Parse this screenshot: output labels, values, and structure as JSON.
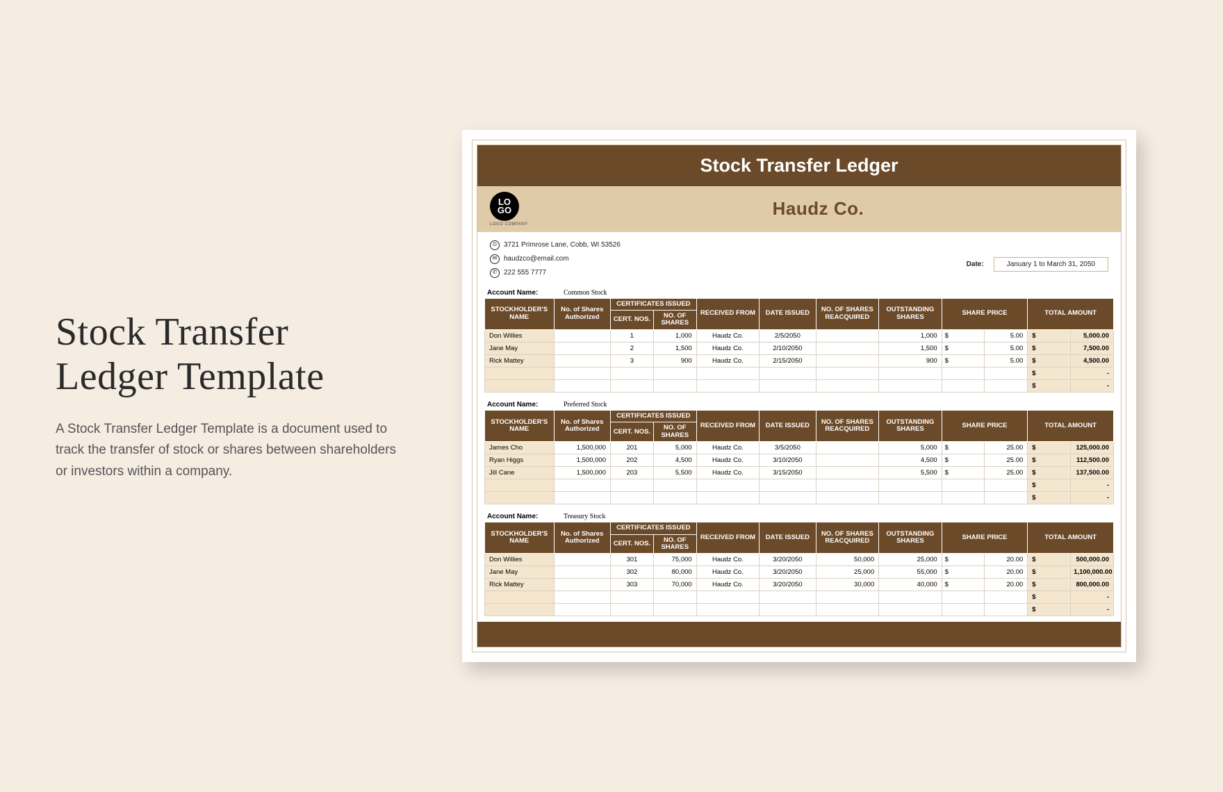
{
  "page": {
    "bg": "#f5ece2",
    "left_title": "Stock Transfer Ledger Template",
    "left_desc": "A Stock Transfer Ledger Template is a document used to track the transfer of stock or shares between shareholders or investors within a company."
  },
  "doc": {
    "title": "Stock Transfer Ledger",
    "logo_text": "LO\nGO",
    "logo_sub": "LOGO COMPANY",
    "company": "Haudz Co.",
    "address": "3721 Primrose Lane, Cobb, WI 53526",
    "email": "haudzco@email.com",
    "phone": "222 555 7777",
    "date_label": "Date:",
    "date_value": "January 1 to March 31, 2050",
    "header_brown": "#6b4a29",
    "header_tan": "#e0cba9",
    "cell_tan": "#f4e6ce",
    "acct_label": "Account Name:",
    "columns": {
      "name": "STOCKHOLDER'S NAME",
      "auth": "No. of Shares Authorized",
      "cert_group": "CERTIFICATES ISSUED",
      "cert_nos": "CERT. NOS.",
      "no_shares": "NO. OF SHARES",
      "recv": "RECEIVED FROM",
      "issued": "DATE ISSUED",
      "reacq": "NO. OF SHARES REACQUIRED",
      "outstanding": "OUTSTANDING SHARES",
      "price": "SHARE PRICE",
      "total": "TOTAL AMOUNT"
    },
    "sections": [
      {
        "account": "Common Stock",
        "rows": [
          {
            "name": "Don Willies",
            "auth": "",
            "cert": "1",
            "nsh": "1,000",
            "recv": "Haudz Co.",
            "date": "2/5/2050",
            "reacq": "",
            "out": "1,000",
            "sp": "5.00",
            "tot": "5,000.00"
          },
          {
            "name": "Jane May",
            "auth": "",
            "cert": "2",
            "nsh": "1,500",
            "recv": "Haudz Co.",
            "date": "2/10/2050",
            "reacq": "",
            "out": "1,500",
            "sp": "5.00",
            "tot": "7,500.00"
          },
          {
            "name": "Rick Mattey",
            "auth": "",
            "cert": "3",
            "nsh": "900",
            "recv": "Haudz Co.",
            "date": "2/15/2050",
            "reacq": "",
            "out": "900",
            "sp": "5.00",
            "tot": "4,500.00"
          },
          {
            "name": "",
            "auth": "",
            "cert": "",
            "nsh": "",
            "recv": "",
            "date": "",
            "reacq": "",
            "out": "",
            "sp": "",
            "tot": "-"
          },
          {
            "name": "",
            "auth": "",
            "cert": "",
            "nsh": "",
            "recv": "",
            "date": "",
            "reacq": "",
            "out": "",
            "sp": "",
            "tot": "-"
          }
        ]
      },
      {
        "account": "Preferred Stock",
        "rows": [
          {
            "name": "James Cho",
            "auth": "1,500,000",
            "cert": "201",
            "nsh": "5,000",
            "recv": "Haudz Co.",
            "date": "3/5/2050",
            "reacq": "",
            "out": "5,000",
            "sp": "25.00",
            "tot": "125,000.00"
          },
          {
            "name": "Ryan Higgs",
            "auth": "1,500,000",
            "cert": "202",
            "nsh": "4,500",
            "recv": "Haudz Co.",
            "date": "3/10/2050",
            "reacq": "",
            "out": "4,500",
            "sp": "25.00",
            "tot": "112,500.00"
          },
          {
            "name": "Jill Cane",
            "auth": "1,500,000",
            "cert": "203",
            "nsh": "5,500",
            "recv": "Haudz Co.",
            "date": "3/15/2050",
            "reacq": "",
            "out": "5,500",
            "sp": "25.00",
            "tot": "137,500.00"
          },
          {
            "name": "",
            "auth": "",
            "cert": "",
            "nsh": "",
            "recv": "",
            "date": "",
            "reacq": "",
            "out": "",
            "sp": "",
            "tot": "-"
          },
          {
            "name": "",
            "auth": "",
            "cert": "",
            "nsh": "",
            "recv": "",
            "date": "",
            "reacq": "",
            "out": "",
            "sp": "",
            "tot": "-"
          }
        ]
      },
      {
        "account": "Treasury Stock",
        "rows": [
          {
            "name": "Don Willies",
            "auth": "",
            "cert": "301",
            "nsh": "75,000",
            "recv": "Haudz Co.",
            "date": "3/20/2050",
            "reacq": "50,000",
            "out": "25,000",
            "sp": "20.00",
            "tot": "500,000.00"
          },
          {
            "name": "Jane May",
            "auth": "",
            "cert": "302",
            "nsh": "80,000",
            "recv": "Haudz Co.",
            "date": "3/20/2050",
            "reacq": "25,000",
            "out": "55,000",
            "sp": "20.00",
            "tot": "1,100,000.00"
          },
          {
            "name": "Rick Mattey",
            "auth": "",
            "cert": "303",
            "nsh": "70,000",
            "recv": "Haudz Co.",
            "date": "3/20/2050",
            "reacq": "30,000",
            "out": "40,000",
            "sp": "20.00",
            "tot": "800,000.00"
          },
          {
            "name": "",
            "auth": "",
            "cert": "",
            "nsh": "",
            "recv": "",
            "date": "",
            "reacq": "",
            "out": "",
            "sp": "",
            "tot": "-"
          },
          {
            "name": "",
            "auth": "",
            "cert": "",
            "nsh": "",
            "recv": "",
            "date": "",
            "reacq": "",
            "out": "",
            "sp": "",
            "tot": "-"
          }
        ]
      }
    ]
  }
}
